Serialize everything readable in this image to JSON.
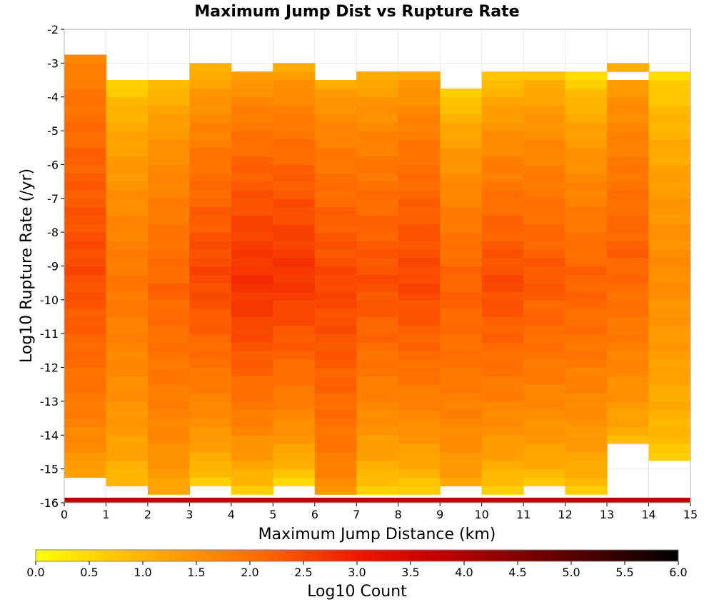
{
  "chart_data": {
    "type": "heatmap",
    "title": "Maximum Jump Dist vs Rupture Rate",
    "xlabel": "Maximum Jump Distance (km)",
    "ylabel": "Log10 Rupture Rate (/yr)",
    "xlim": [
      0,
      15
    ],
    "ylim": [
      -16,
      -2
    ],
    "x_ticks": [
      "0",
      "1",
      "2",
      "3",
      "4",
      "5",
      "6",
      "7",
      "8",
      "9",
      "10",
      "11",
      "12",
      "13",
      "14",
      "15"
    ],
    "y_ticks": [
      "-2",
      "-3",
      "-4",
      "-5",
      "-6",
      "-7",
      "-8",
      "-9",
      "-10",
      "-11",
      "-12",
      "-13",
      "-14",
      "-15",
      "-16"
    ],
    "x_bin_width": 1,
    "y_bin_width": 0.25,
    "columns": [
      {
        "x0": 0,
        "ymin": -15.25,
        "ymax": -2.75,
        "base": [
          1.0,
          2.45,
          1.5
        ]
      },
      {
        "x0": 1,
        "ymin": -15.5,
        "ymax": -3.5,
        "base": [
          0.7,
          1.9,
          0.4
        ]
      },
      {
        "x0": 2,
        "ymin": -15.75,
        "ymax": -3.5,
        "base": [
          1.0,
          2.15,
          0.6
        ]
      },
      {
        "x0": 3,
        "ymin": -15.5,
        "ymax": -3.0,
        "base": [
          0.3,
          2.5,
          0.7
        ]
      },
      {
        "x0": 4,
        "ymin": -15.75,
        "ymax": -3.25,
        "base": [
          0.3,
          2.75,
          1.0
        ]
      },
      {
        "x0": 5,
        "ymin": -15.5,
        "ymax": -3.0,
        "base": [
          0.2,
          2.7,
          0.9
        ]
      },
      {
        "x0": 6,
        "ymin": -15.75,
        "ymax": -3.5,
        "base": [
          1.3,
          2.5,
          0.9
        ]
      },
      {
        "x0": 7,
        "ymin": -15.75,
        "ymax": -3.25,
        "base": [
          0.3,
          2.4,
          0.8
        ]
      },
      {
        "x0": 8,
        "ymin": -15.75,
        "ymax": -3.25,
        "base": [
          0.3,
          2.5,
          1.0
        ]
      },
      {
        "x0": 9,
        "ymin": -15.5,
        "ymax": -3.75,
        "base": [
          1.0,
          2.2,
          0.3
        ]
      },
      {
        "x0": 10,
        "ymin": -15.75,
        "ymax": -3.25,
        "base": [
          0.3,
          2.45,
          0.4
        ]
      },
      {
        "x0": 11,
        "ymin": -15.5,
        "ymax": -3.25,
        "base": [
          0.5,
          2.3,
          0.6
        ]
      },
      {
        "x0": 12,
        "ymin": -15.75,
        "ymax": -3.25,
        "base": [
          0.5,
          2.2,
          0.2
        ]
      },
      {
        "x0": 13,
        "ymin": -14.25,
        "ymax": -3.0,
        "base": [
          0.7,
          2.2,
          0.9
        ]
      },
      {
        "x0": 14,
        "ymin": -14.75,
        "ymax": -3.25,
        "base": [
          0.5,
          1.6,
          0.3
        ]
      }
    ],
    "gaps": [
      [
        13,
        -3.5
      ]
    ],
    "bottom_row": {
      "y0": -16,
      "y1": -15.85,
      "value": 3.8
    },
    "colorbar": {
      "label": "Log10 Count",
      "min": 0.0,
      "max": 6.0,
      "ticks": [
        "0.0",
        "0.5",
        "1.0",
        "1.5",
        "2.0",
        "2.5",
        "3.0",
        "3.5",
        "4.0",
        "4.5",
        "5.0",
        "5.5",
        "6.0"
      ]
    },
    "grid": true
  }
}
